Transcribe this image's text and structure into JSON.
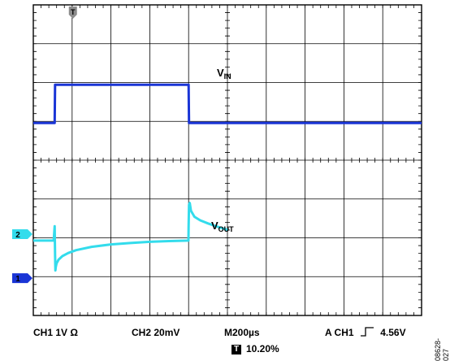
{
  "chart_data": {
    "type": "line",
    "title": "",
    "x_unit": "µs",
    "xlim": [
      0,
      2000
    ],
    "grid": true,
    "divisions": {
      "x": 10,
      "y": 8
    },
    "series": [
      {
        "name": "VIN",
        "label_main": "V",
        "label_sub": "IN",
        "color": "#1a35d6",
        "x": [
          0,
          110,
          112,
          800,
          802,
          2000
        ],
        "y": [
          2.0,
          2.0,
          3.0,
          3.0,
          2.0,
          2.0
        ]
      },
      {
        "name": "VOUT",
        "label_main": "V",
        "label_sub": "OUT",
        "color": "#33dcec",
        "x": [
          0,
          105,
          110,
          112,
          114,
          116,
          120,
          130,
          150,
          180,
          220,
          300,
          400,
          500,
          600,
          700,
          799,
          800,
          802,
          806,
          812,
          830,
          860,
          900,
          950,
          1000
        ],
        "y": [
          0.0,
          0.0,
          6.0,
          -6.0,
          -12.5,
          -11.0,
          -9.5,
          -8.0,
          -6.5,
          -5.2,
          -4.0,
          -2.6,
          -1.6,
          -1.0,
          -0.5,
          -0.2,
          0.0,
          6.0,
          15.0,
          15.8,
          12.5,
          10.0,
          8.5,
          7.2,
          5.8,
          4.5
        ]
      }
    ],
    "markers": {
      "trigger": "T",
      "ch2": "2",
      "ch1": "1"
    }
  },
  "settings": {
    "ch1": "CH1  1V Ω",
    "ch2": "CH2  20mV",
    "timebase": "M200µs",
    "trigger": "A  CH1  ⎍  4.56V",
    "trigger_source": "A  CH1",
    "trigger_level": "4.56V",
    "position_icon": "T",
    "position": "10.20%"
  },
  "figure_id": "08628-027"
}
